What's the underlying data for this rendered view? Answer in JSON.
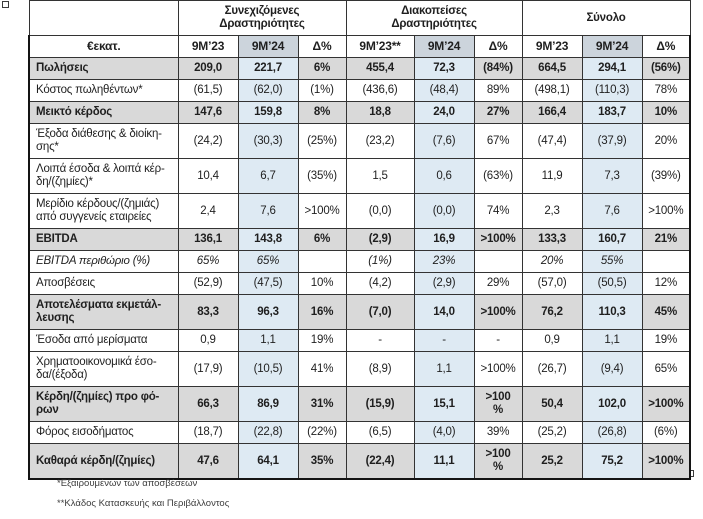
{
  "colors": {
    "row_shade": "#d9d9d9",
    "col_highlight": "#deeaf3",
    "header_highlight": "#ccd4dc",
    "border_dark": "#141414"
  },
  "table": {
    "unit_label": "€εκατ.",
    "groups": [
      {
        "label": "Συνεχιζόμενες\nΔραστηριότητες"
      },
      {
        "label": "Διακοπείσες\nΔραστηριότητες"
      },
      {
        "label": "Σύνολο"
      }
    ],
    "column_headers": [
      "9M’23",
      "9M’24",
      "Δ%",
      "9M’23**",
      "9M’24",
      "Δ%",
      "9M’23",
      "9M’24",
      "Δ%"
    ],
    "rows": [
      {
        "label": "Πωλήσεις",
        "style": "total",
        "values": [
          "209,0",
          "221,7",
          "6%",
          "455,4",
          "72,3",
          "(84%)",
          "664,5",
          "294,1",
          "(56%)"
        ]
      },
      {
        "label": "Κόστος πωληθέντων*",
        "style": "normal",
        "values": [
          "(61,5)",
          "(62,0)",
          "(1%)",
          "(436,6)",
          "(48,4)",
          "89%",
          "(498,1)",
          "(110,3)",
          "78%"
        ]
      },
      {
        "label": "Μεικτό κέρδος",
        "style": "total",
        "values": [
          "147,6",
          "159,8",
          "8%",
          "18,8",
          "24,0",
          "27%",
          "166,4",
          "183,7",
          "10%"
        ]
      },
      {
        "label": "Έξοδα διάθεσης & διοίκη-\nσης*",
        "style": "normal",
        "values": [
          "(24,2)",
          "(30,3)",
          "(25%)",
          "(23,2)",
          "(7,6)",
          "67%",
          "(47,4)",
          "(37,9)",
          "20%"
        ]
      },
      {
        "label": "Λοιπά έσοδα & λοιπά κέρ-\nδη/(ζημίες)*",
        "style": "normal",
        "values": [
          "10,4",
          "6,7",
          "(35%)",
          "1,5",
          "0,6",
          "(63%)",
          "11,9",
          "7,3",
          "(39%)"
        ]
      },
      {
        "label": "Μερίδιο κέρδους/(ζημιάς)\nαπό συγγενείς εταιρείες",
        "style": "normal",
        "values": [
          "2,4",
          "7,6",
          ">100%",
          "(0,0)",
          "(0,0)",
          "74%",
          "2,3",
          "7,6",
          ">100%"
        ]
      },
      {
        "label": "EBITDA",
        "style": "total",
        "values": [
          "136,1",
          "143,8",
          "6%",
          "(2,9)",
          "16,9",
          ">100%",
          "133,3",
          "160,7",
          "21%"
        ]
      },
      {
        "label": "EBITDA περιθώριο (%)",
        "style": "italic",
        "values": [
          "65%",
          "65%",
          "",
          "(1%)",
          "23%",
          "",
          "20%",
          "55%",
          ""
        ]
      },
      {
        "label": "Αποσβέσεις",
        "style": "normal",
        "values": [
          "(52,9)",
          "(47,5)",
          "10%",
          "(4,2)",
          "(2,9)",
          "29%",
          "(57,0)",
          "(50,5)",
          "12%"
        ]
      },
      {
        "label": "Αποτελέσματα εκμετάλ-\nλευσης",
        "style": "total",
        "values": [
          "83,3",
          "96,3",
          "16%",
          "(7,0)",
          "14,0",
          ">100%",
          "76,2",
          "110,3",
          "45%"
        ]
      },
      {
        "label": "Έσοδα από μερίσματα",
        "style": "normal",
        "values": [
          "0,9",
          "1,1",
          "19%",
          "-",
          "-",
          "-",
          "0,9",
          "1,1",
          "19%"
        ]
      },
      {
        "label": "Χρηματοοικονομικά έσο-\nδα/(έξοδα)",
        "style": "normal",
        "values": [
          "(17,9)",
          "(10,5)",
          "41%",
          "(8,9)",
          "1,1",
          ">100%",
          "(26,7)",
          "(9,4)",
          "65%"
        ]
      },
      {
        "label": "Κέρδη/(ζημίες) προ φό-\nρων",
        "style": "total",
        "values": [
          "66,3",
          "86,9",
          "31%",
          "(15,9)",
          "15,1",
          ">100\n%",
          "50,4",
          "102,0",
          ">100%"
        ]
      },
      {
        "label": "Φόρος εισοδήματος",
        "style": "normal",
        "values": [
          "(18,7)",
          "(22,8)",
          "(22%)",
          "(6,5)",
          "(4,0)",
          "39%",
          "(25,2)",
          "(26,8)",
          "(6%)"
        ]
      },
      {
        "label": "Καθαρά κέρδη/(ζημίες)",
        "style": "total",
        "values": [
          "47,6",
          "64,1",
          "35%",
          "(22,4)",
          "11,1",
          ">100\n%",
          "25,2",
          "75,2",
          ">100%"
        ]
      }
    ],
    "footnotes": [
      "*Εξαιρουμένων των αποσβέσεων",
      "**Κλάδος Κατασκευής και Περιβάλλοντος"
    ]
  }
}
